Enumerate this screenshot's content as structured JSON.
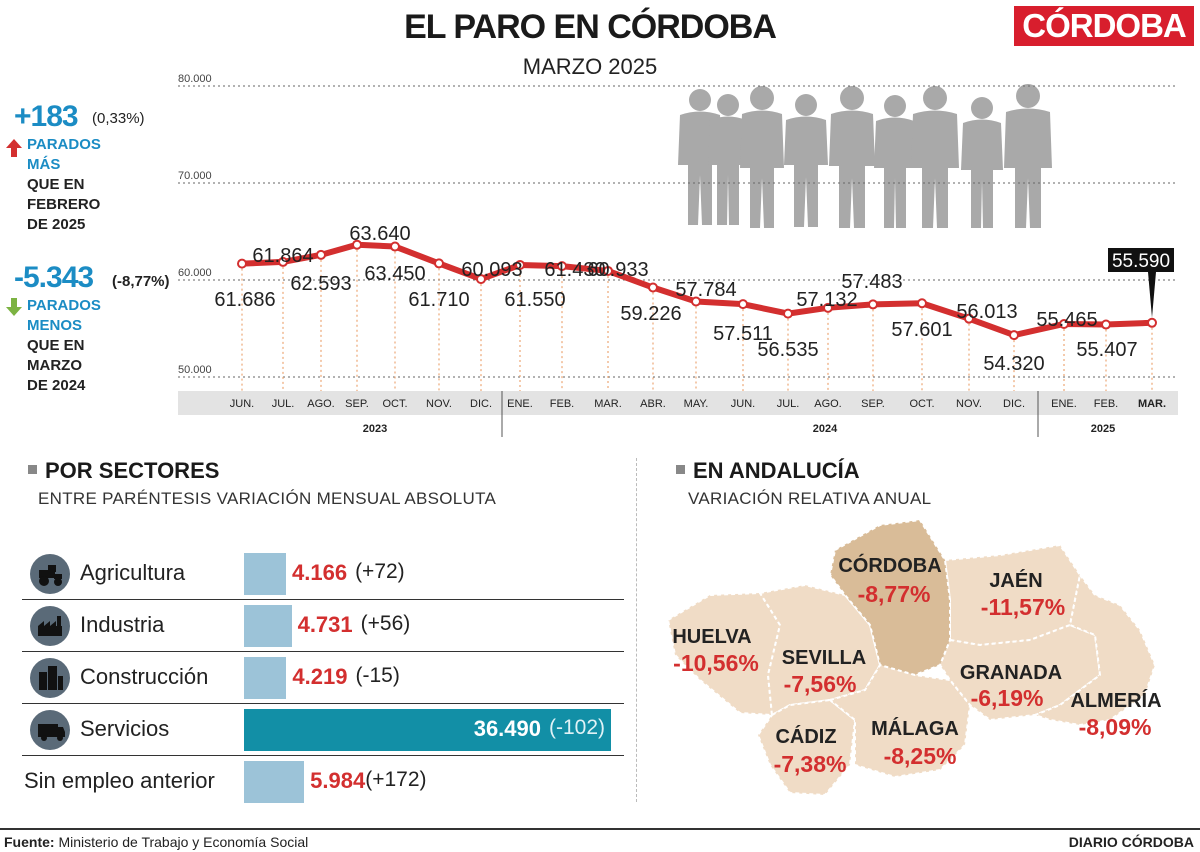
{
  "header": {
    "title": "EL PARO EN CÓRDOBA",
    "subtitle": "MARZO 2025",
    "brand": "CÓRDOBA"
  },
  "kpis": {
    "up": {
      "value": "+183",
      "pct": "(0,33%)",
      "line1": "PARADOS",
      "line2": "MÁS",
      "line3": "QUE EN",
      "line4": "FEBRERO",
      "line5": "DE 2025"
    },
    "down": {
      "value": "-5.343",
      "pct": "(-8,77%)",
      "line1": "PARADOS",
      "line2": "MENOS",
      "line3": "QUE EN",
      "line4": "MARZO",
      "line5": "DE 2024"
    }
  },
  "chart_data": {
    "type": "line",
    "title": "EL PARO EN CÓRDOBA",
    "ylim": [
      50000,
      80000
    ],
    "y_ticks": [
      50000,
      60000,
      70000,
      80000
    ],
    "y_tick_labels": [
      "50.000",
      "60.000",
      "70.000",
      "80.000"
    ],
    "categories": [
      "JUN.",
      "JUL.",
      "AGO.",
      "SEP.",
      "OCT.",
      "NOV.",
      "DIC.",
      "ENE.",
      "FEB.",
      "MAR.",
      "ABR.",
      "MAY.",
      "JUN.",
      "JUL.",
      "AGO.",
      "SEP.",
      "OCT.",
      "NOV.",
      "DIC.",
      "ENE.",
      "FEB.",
      "MAR."
    ],
    "years": [
      "2023",
      "2024",
      "2025"
    ],
    "values": [
      61686,
      61864,
      62593,
      63640,
      63450,
      61710,
      60093,
      61550,
      61430,
      60933,
      59226,
      57784,
      57511,
      56535,
      57132,
      57483,
      57601,
      56013,
      54320,
      55465,
      55407,
      55590
    ],
    "value_labels": [
      "61.686",
      "61.864",
      "62.593",
      "63.640",
      "63.450",
      "61.710",
      "60.093",
      "61.550",
      "61.430",
      "60.933",
      "59.226",
      "57.784",
      "57.511",
      "56.535",
      "57.132",
      "57.483",
      "57.601",
      "56.013",
      "54.320",
      "55.465",
      "55.407",
      "55.590"
    ],
    "highlight_label": "55.590",
    "line_color": "#d32f2f"
  },
  "sectors": {
    "title": "POR SECTORES",
    "subtitle": "ENTRE PARÉNTESIS VARIACIÓN MENSUAL ABSOLUTA",
    "items": [
      {
        "name": "Agricultura",
        "value": 4166,
        "value_label": "4.166",
        "change": "(+72)",
        "icon": "tractor-icon"
      },
      {
        "name": "Industria",
        "value": 4731,
        "value_label": "4.731",
        "change": "(+56)",
        "icon": "factory-icon"
      },
      {
        "name": "Construcción",
        "value": 4219,
        "value_label": "4.219",
        "change": "(-15)",
        "icon": "buildings-icon"
      },
      {
        "name": "Servicios",
        "value": 36490,
        "value_label": "36.490",
        "change": "(-102)",
        "icon": "truck-icon"
      },
      {
        "name": "Sin empleo anterior",
        "value": 5984,
        "value_label": "5.984",
        "change": "(+172)",
        "icon": ""
      }
    ]
  },
  "andalucia": {
    "title": "EN ANDALUCÍA",
    "subtitle": "VARIACIÓN RELATIVA ANUAL",
    "provinces": [
      {
        "name": "CÓRDOBA",
        "value": "-8,77%"
      },
      {
        "name": "JAÉN",
        "value": "-11,57%"
      },
      {
        "name": "HUELVA",
        "value": "-10,56%"
      },
      {
        "name": "SEVILLA",
        "value": "-7,56%"
      },
      {
        "name": "GRANADA",
        "value": "-6,19%"
      },
      {
        "name": "ALMERÍA",
        "value": "-8,09%"
      },
      {
        "name": "CÁDIZ",
        "value": "-7,38%"
      },
      {
        "name": "MÁLAGA",
        "value": "-8,25%"
      }
    ]
  },
  "footer": {
    "source_label": "Fuente:",
    "source_text": "Ministerio de Trabajo y Economía Social",
    "brand": "DIARIO CÓRDOBA"
  },
  "colors": {
    "accent_red": "#d32f2f",
    "accent_blue": "#1b8cc4",
    "bar_light": "#9cc3d8",
    "bar_highlight": "#128fa6",
    "map_base": "#f0dcc6",
    "map_highlight": "#d9bc98"
  }
}
